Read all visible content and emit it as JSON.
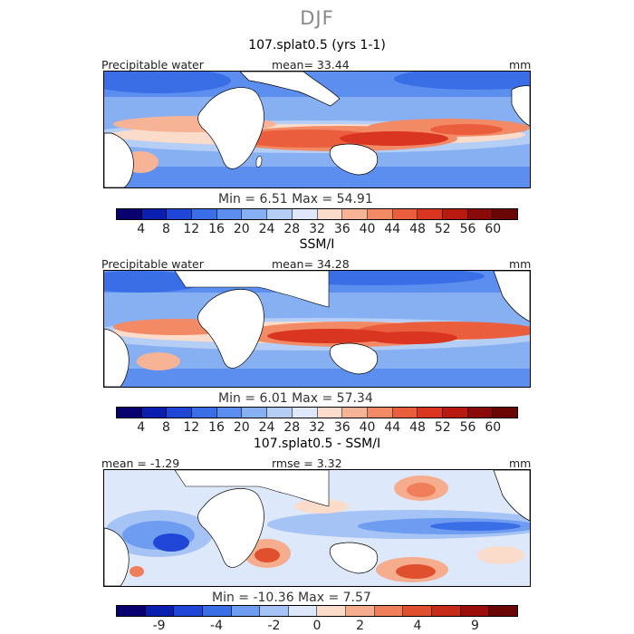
{
  "figure": {
    "season": "DJF"
  },
  "panels": [
    {
      "title": "107.splat0.5 (yrs 1-1)",
      "left_label": "Precipitable water",
      "center_label": "mean=   33.44",
      "unit": "mm",
      "min_max": "Min =    6.51  Max =   54.91",
      "colorbar_ticks": [
        "4",
        "8",
        "12",
        "16",
        "20",
        "24",
        "28",
        "32",
        "36",
        "40",
        "44",
        "48",
        "52",
        "56",
        "60"
      ],
      "colors": [
        "#08006e",
        "#0a1fb0",
        "#1f46d6",
        "#3a6ee6",
        "#5b8eee",
        "#86b0f2",
        "#b4cef6",
        "#dfe8fb",
        "#fbdccb",
        "#f7b395",
        "#f28a66",
        "#ea5e3d",
        "#d93520",
        "#b81a12",
        "#8a0a0a",
        "#6a0606"
      ]
    },
    {
      "title": "SSM/I",
      "left_label": "Precipitable water",
      "center_label": "mean=   34.28",
      "unit": "mm",
      "min_max": "Min =    6.01  Max =   57.34",
      "colorbar_ticks": [
        "4",
        "8",
        "12",
        "16",
        "20",
        "24",
        "28",
        "32",
        "36",
        "40",
        "44",
        "48",
        "52",
        "56",
        "60"
      ],
      "colors": [
        "#08006e",
        "#0a1fb0",
        "#1f46d6",
        "#3a6ee6",
        "#5b8eee",
        "#86b0f2",
        "#b4cef6",
        "#dfe8fb",
        "#fbdccb",
        "#f7b395",
        "#f28a66",
        "#ea5e3d",
        "#d93520",
        "#b81a12",
        "#8a0a0a",
        "#6a0606"
      ]
    },
    {
      "title": "107.splat0.5 - SSM/I",
      "left_label": "mean =   -1.29",
      "center_label": "rmse =    3.32",
      "unit": "mm",
      "min_max": "Min = -10.36  Max =    7.57",
      "colorbar_ticks": [
        "-9",
        "-4",
        "-2",
        "0",
        "2",
        "4",
        "9"
      ],
      "colors": [
        "#08006e",
        "#0a1fb0",
        "#1f46d6",
        "#3a6ee6",
        "#6d9cf0",
        "#a6c3f5",
        "#dde8fb",
        "#fbdccb",
        "#f5ad8e",
        "#ee7f5a",
        "#e0502f",
        "#c52b18",
        "#9c0e0b",
        "#6a0606"
      ]
    }
  ]
}
